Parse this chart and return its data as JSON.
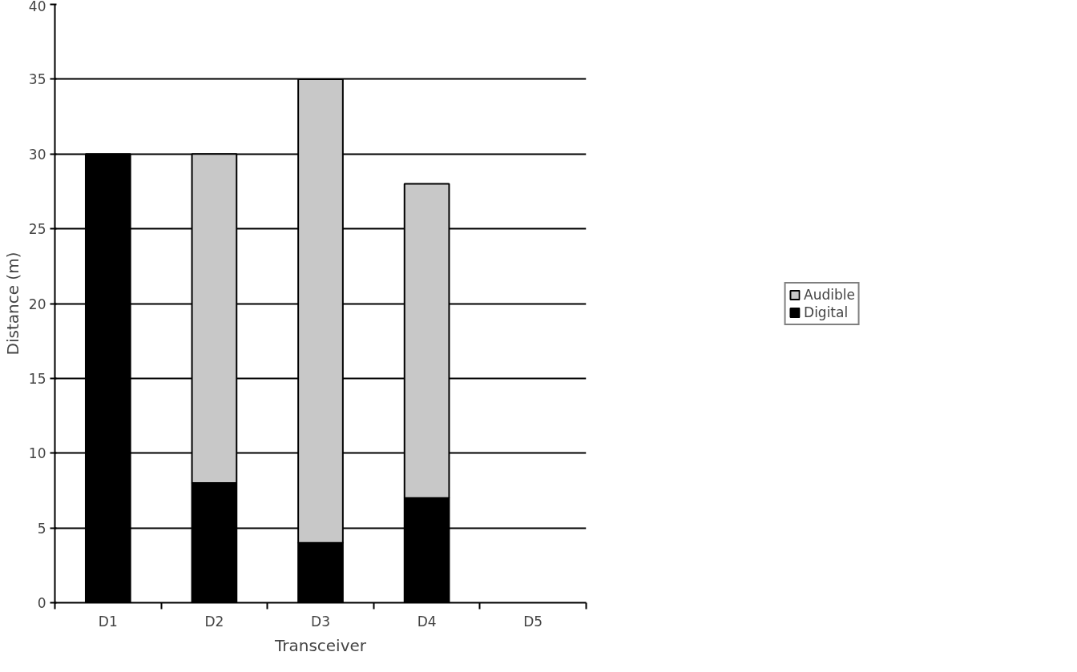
{
  "chart_data": {
    "type": "bar",
    "stacked": true,
    "xlabel": "Transceiver",
    "ylabel": "Distance (m)",
    "categories": [
      "D1",
      "D2",
      "D3",
      "D4",
      "D5"
    ],
    "series": [
      {
        "name": "Digital",
        "color": "#000000",
        "values": [
          30,
          8,
          4,
          7,
          null
        ]
      },
      {
        "name": "Audible",
        "color": "#c8c8c8",
        "values": [
          null,
          22,
          31,
          21,
          null
        ]
      }
    ],
    "ylim": [
      0,
      40
    ],
    "yticks": [
      0,
      5,
      10,
      15,
      20,
      25,
      30,
      35,
      40
    ],
    "grid": "y",
    "legend": "right"
  }
}
